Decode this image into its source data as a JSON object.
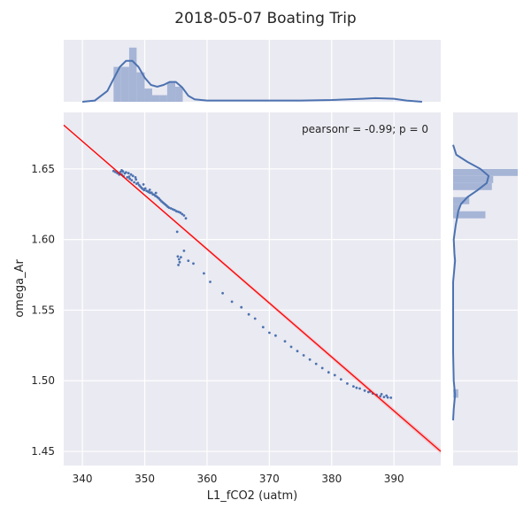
{
  "chart_data": {
    "type": "scatter",
    "title": "2018-05-07 Boating Trip",
    "xlabel": "L1_fCO2 (uatm)",
    "ylabel": "omega_Ar",
    "annotation": "pearsonr = -0.99; p = 0",
    "xlim": [
      337,
      397.5
    ],
    "ylim": [
      1.44,
      1.69
    ],
    "x_ticks": [
      340,
      350,
      360,
      370,
      380,
      390
    ],
    "y_ticks": [
      1.45,
      1.5,
      1.55,
      1.6,
      1.65
    ],
    "x_tick_labels": [
      "340",
      "350",
      "360",
      "370",
      "380",
      "390"
    ],
    "y_tick_labels": [
      "1.45",
      "1.50",
      "1.55",
      "1.60",
      "1.65"
    ],
    "grid": true,
    "colors": {
      "points": "#4c72b0",
      "regression": "#ff0000",
      "background": "#eaeaf2",
      "hist_fill": "#a6b5d6"
    },
    "points": [
      [
        345.0,
        1.6485
      ],
      [
        345.3,
        1.6478
      ],
      [
        345.6,
        1.647
      ],
      [
        345.9,
        1.646
      ],
      [
        346.1,
        1.6478
      ],
      [
        346.3,
        1.649
      ],
      [
        346.5,
        1.6482
      ],
      [
        346.6,
        1.6448
      ],
      [
        346.8,
        1.6468
      ],
      [
        347.0,
        1.6475
      ],
      [
        347.2,
        1.644
      ],
      [
        347.4,
        1.647
      ],
      [
        347.6,
        1.643
      ],
      [
        347.8,
        1.646
      ],
      [
        347.9,
        1.642
      ],
      [
        348.1,
        1.645
      ],
      [
        348.3,
        1.6405
      ],
      [
        348.5,
        1.644
      ],
      [
        348.7,
        1.6395
      ],
      [
        348.9,
        1.64
      ],
      [
        349.1,
        1.6385
      ],
      [
        349.3,
        1.6375
      ],
      [
        349.5,
        1.6365
      ],
      [
        349.7,
        1.6358
      ],
      [
        349.9,
        1.635
      ],
      [
        350.1,
        1.6362
      ],
      [
        350.3,
        1.6345
      ],
      [
        350.5,
        1.634
      ],
      [
        350.7,
        1.6335
      ],
      [
        350.9,
        1.633
      ],
      [
        351.1,
        1.6332
      ],
      [
        351.3,
        1.632
      ],
      [
        351.5,
        1.6318
      ],
      [
        351.7,
        1.631
      ],
      [
        351.9,
        1.6305
      ],
      [
        352.1,
        1.6298
      ],
      [
        352.3,
        1.629
      ],
      [
        352.5,
        1.628
      ],
      [
        352.7,
        1.627
      ],
      [
        352.9,
        1.6262
      ],
      [
        353.1,
        1.6255
      ],
      [
        353.3,
        1.6248
      ],
      [
        353.5,
        1.624
      ],
      [
        353.7,
        1.6232
      ],
      [
        353.9,
        1.6226
      ],
      [
        354.2,
        1.622
      ],
      [
        354.5,
        1.6214
      ],
      [
        354.8,
        1.6208
      ],
      [
        355.1,
        1.62
      ],
      [
        355.4,
        1.6196
      ],
      [
        355.7,
        1.619
      ],
      [
        356.0,
        1.618
      ],
      [
        356.3,
        1.617
      ],
      [
        356.6,
        1.615
      ],
      [
        346.3,
        1.646
      ],
      [
        347.5,
        1.6445
      ],
      [
        348.6,
        1.6425
      ],
      [
        349.8,
        1.639
      ],
      [
        350.8,
        1.6352
      ],
      [
        351.8,
        1.633
      ],
      [
        355.2,
        1.6055
      ],
      [
        355.3,
        1.588
      ],
      [
        355.5,
        1.586
      ],
      [
        355.6,
        1.584
      ],
      [
        355.4,
        1.582
      ],
      [
        355.8,
        1.5875
      ],
      [
        356.3,
        1.592
      ],
      [
        357.0,
        1.585
      ],
      [
        357.8,
        1.583
      ],
      [
        359.5,
        1.576
      ],
      [
        360.5,
        1.57
      ],
      [
        362.5,
        1.562
      ],
      [
        364.0,
        1.556
      ],
      [
        365.5,
        1.552
      ],
      [
        366.7,
        1.547
      ],
      [
        367.7,
        1.544
      ],
      [
        369.0,
        1.538
      ],
      [
        370.0,
        1.534
      ],
      [
        371.0,
        1.532
      ],
      [
        372.5,
        1.528
      ],
      [
        373.5,
        1.524
      ],
      [
        374.5,
        1.521
      ],
      [
        375.5,
        1.518
      ],
      [
        376.5,
        1.515
      ],
      [
        377.5,
        1.512
      ],
      [
        378.5,
        1.509
      ],
      [
        379.5,
        1.506
      ],
      [
        380.5,
        1.504
      ],
      [
        381.5,
        1.501
      ],
      [
        382.5,
        1.498
      ],
      [
        383.5,
        1.496
      ],
      [
        384.5,
        1.4945
      ],
      [
        385.3,
        1.493
      ],
      [
        385.9,
        1.492
      ],
      [
        386.6,
        1.491
      ],
      [
        387.2,
        1.49
      ],
      [
        387.8,
        1.489
      ],
      [
        388.4,
        1.4885
      ],
      [
        389.0,
        1.4882
      ],
      [
        389.5,
        1.488
      ],
      [
        388.0,
        1.4905
      ],
      [
        388.8,
        1.4895
      ],
      [
        386.2,
        1.4925
      ],
      [
        384.0,
        1.495
      ]
    ],
    "regression": {
      "x": [
        337,
        397.5
      ],
      "y": [
        1.681,
        1.45
      ]
    },
    "top_histogram": {
      "bins": [
        [
          345,
          346.2,
          0.58
        ],
        [
          346.2,
          347.5,
          0.58
        ],
        [
          347.5,
          348.7,
          0.9
        ],
        [
          348.7,
          350,
          0.49
        ],
        [
          350,
          351.2,
          0.22
        ],
        [
          351.2,
          352.4,
          0.11
        ],
        [
          352.4,
          353.6,
          0.11
        ],
        [
          353.6,
          354.9,
          0.33
        ],
        [
          354.9,
          356.1,
          0.25
        ]
      ],
      "kde": [
        [
          340,
          0.0
        ],
        [
          342,
          0.02
        ],
        [
          344,
          0.18
        ],
        [
          345,
          0.38
        ],
        [
          346,
          0.58
        ],
        [
          347,
          0.68
        ],
        [
          348,
          0.68
        ],
        [
          349,
          0.58
        ],
        [
          350,
          0.4
        ],
        [
          351,
          0.28
        ],
        [
          352,
          0.25
        ],
        [
          353,
          0.28
        ],
        [
          354,
          0.33
        ],
        [
          355,
          0.33
        ],
        [
          356,
          0.24
        ],
        [
          357,
          0.1
        ],
        [
          358,
          0.04
        ],
        [
          360,
          0.02
        ],
        [
          365,
          0.02
        ],
        [
          370,
          0.02
        ],
        [
          375,
          0.02
        ],
        [
          380,
          0.03
        ],
        [
          385,
          0.05
        ],
        [
          387,
          0.06
        ],
        [
          390,
          0.05
        ],
        [
          392,
          0.02
        ],
        [
          394.5,
          0.0
        ]
      ]
    },
    "right_histogram": {
      "bins": [
        [
          1.645,
          1.65,
          1.0
        ],
        [
          1.64,
          1.645,
          0.62
        ],
        [
          1.635,
          1.64,
          0.6
        ],
        [
          1.625,
          1.63,
          0.25
        ],
        [
          1.62,
          1.625,
          0.1
        ],
        [
          1.615,
          1.62,
          0.5
        ],
        [
          1.488,
          1.494,
          0.08
        ]
      ],
      "kde": [
        [
          1.667,
          0.0
        ],
        [
          1.66,
          0.05
        ],
        [
          1.655,
          0.22
        ],
        [
          1.65,
          0.42
        ],
        [
          1.645,
          0.55
        ],
        [
          1.64,
          0.52
        ],
        [
          1.635,
          0.38
        ],
        [
          1.63,
          0.22
        ],
        [
          1.625,
          0.12
        ],
        [
          1.62,
          0.08
        ],
        [
          1.615,
          0.06
        ],
        [
          1.61,
          0.04
        ],
        [
          1.6,
          0.01
        ],
        [
          1.59,
          0.02
        ],
        [
          1.585,
          0.03
        ],
        [
          1.58,
          0.02
        ],
        [
          1.57,
          0.0
        ],
        [
          1.55,
          0.0
        ],
        [
          1.52,
          0.0
        ],
        [
          1.5,
          0.01
        ],
        [
          1.49,
          0.03
        ],
        [
          1.48,
          0.01
        ],
        [
          1.472,
          0.0
        ]
      ]
    }
  }
}
